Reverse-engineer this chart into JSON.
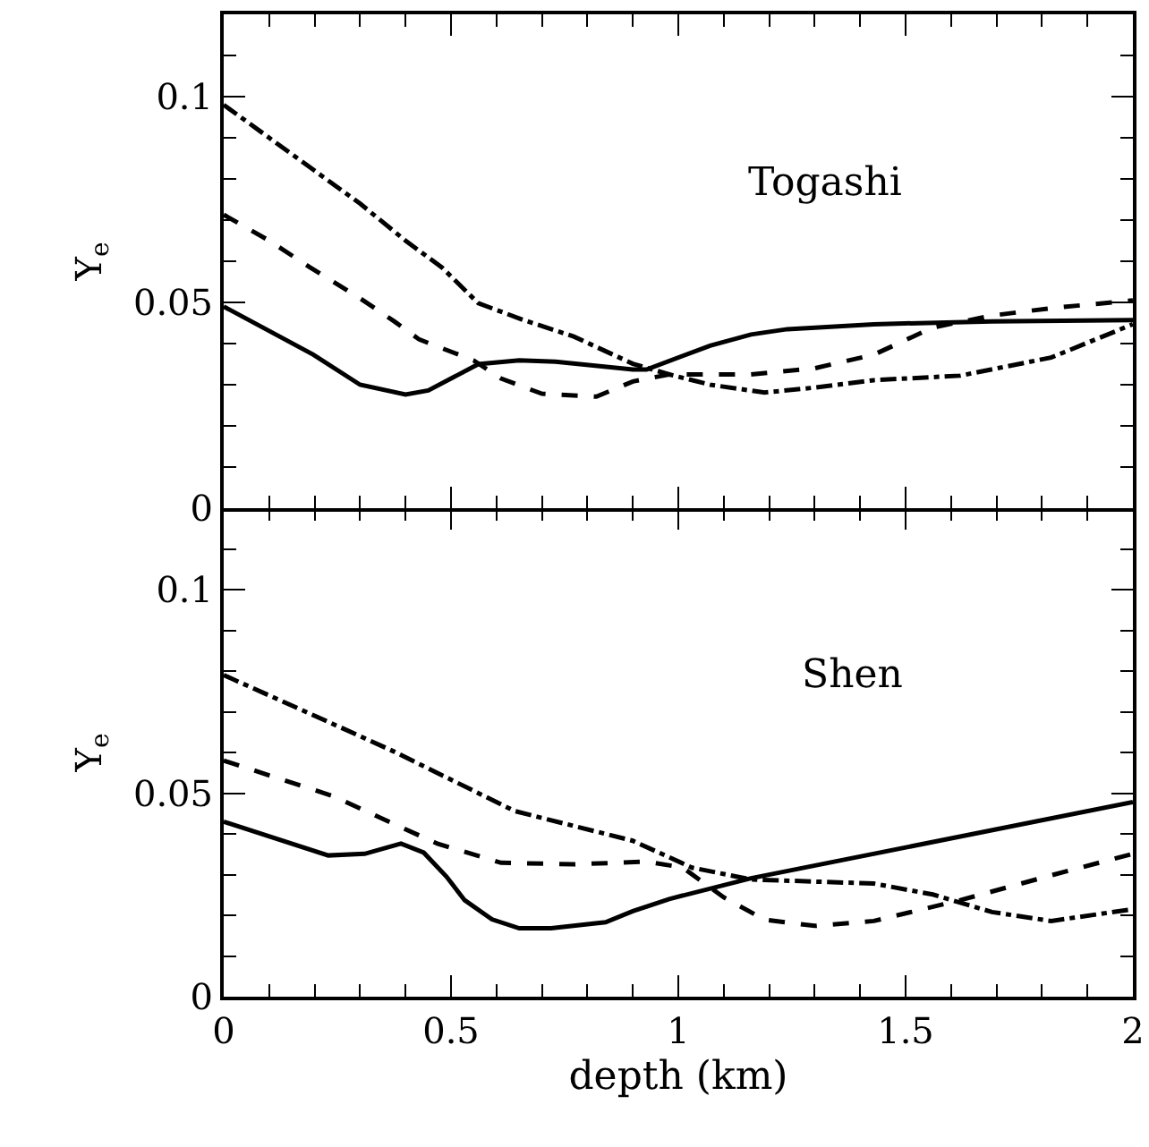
{
  "chart_data": [
    {
      "type": "line",
      "ylabel": "Y$_{e}$",
      "annotations": [
        "Togashi"
      ],
      "tick_labels": "y",
      "xlim": [
        0,
        2
      ],
      "xticks": [
        0,
        0.5,
        1,
        1.5,
        2
      ],
      "ylim": [
        0,
        0.12
      ],
      "yticks": [
        0,
        0.05,
        0.1
      ],
      "series": [
        {
          "color": "#000000",
          "line_style": "solid",
          "x": [
            0,
            0.197,
            0.3,
            0.4,
            0.45,
            0.56,
            0.65,
            0.73,
            0.9,
            0.93,
            1.07,
            1.16,
            1.24,
            1.43,
            1.69,
            2.0
          ],
          "values": [
            0.049,
            0.0373,
            0.03,
            0.0276,
            0.0286,
            0.035,
            0.0359,
            0.0356,
            0.0337,
            0.0337,
            0.0395,
            0.0422,
            0.0435,
            0.0447,
            0.0454,
            0.0457
          ]
        },
        {
          "color": "#000000",
          "line_style": "dashed",
          "x": [
            0,
            0.1,
            0.19,
            0.3,
            0.375,
            0.43,
            0.55,
            0.61,
            0.7,
            0.82,
            0.9,
            0.98,
            1.16,
            1.3,
            1.43,
            1.56,
            1.69,
            1.82,
            2.0
          ],
          "values": [
            0.0713,
            0.065,
            0.0585,
            0.051,
            0.0454,
            0.041,
            0.0359,
            0.0315,
            0.0278,
            0.0271,
            0.0308,
            0.0325,
            0.0325,
            0.034,
            0.0373,
            0.0439,
            0.0468,
            0.0486,
            0.0505
          ]
        },
        {
          "color": "#000000",
          "line_style": "dashdot",
          "x": [
            0,
            0.1,
            0.2,
            0.3,
            0.4,
            0.48,
            0.56,
            0.66,
            0.77,
            0.9,
            0.98,
            1.07,
            1.19,
            1.3,
            1.43,
            1.62,
            1.82,
            2.0
          ],
          "values": [
            0.098,
            0.09,
            0.082,
            0.074,
            0.065,
            0.0585,
            0.0498,
            0.0457,
            0.0417,
            0.0351,
            0.0325,
            0.03,
            0.0281,
            0.0293,
            0.0311,
            0.0322,
            0.0366,
            0.0447
          ]
        }
      ]
    },
    {
      "type": "line",
      "xlabel": "depth (km)",
      "ylabel": "Y$_{e}$",
      "annotations": [
        "Shen"
      ],
      "xlim": [
        0,
        2
      ],
      "xticks": [
        0,
        0.5,
        1,
        1.5,
        2
      ],
      "ylim": [
        0,
        0.12
      ],
      "yticks": [
        0,
        0.05,
        0.1
      ],
      "series": [
        {
          "color": "#000000",
          "line_style": "solid",
          "x": [
            0,
            0.23,
            0.31,
            0.39,
            0.44,
            0.49,
            0.53,
            0.59,
            0.65,
            0.72,
            0.84,
            0.9,
            0.98,
            1.16,
            2.0
          ],
          "values": [
            0.043,
            0.0347,
            0.0351,
            0.0376,
            0.0354,
            0.0295,
            0.0237,
            0.019,
            0.0168,
            0.0168,
            0.0183,
            0.021,
            0.024,
            0.0291,
            0.0478
          ]
        },
        {
          "color": "#000000",
          "line_style": "dashed",
          "x": [
            0,
            0.24,
            0.375,
            0.47,
            0.61,
            0.77,
            0.93,
            1.01,
            1.1,
            1.19,
            1.3,
            1.43,
            1.62,
            1.82,
            2.0
          ],
          "values": [
            0.058,
            0.0493,
            0.0424,
            0.0376,
            0.0329,
            0.0325,
            0.0332,
            0.0317,
            0.0244,
            0.0189,
            0.0174,
            0.0186,
            0.0237,
            0.0298,
            0.0351
          ]
        },
        {
          "color": "#000000",
          "line_style": "dashdot",
          "x": [
            0,
            0.1,
            0.2,
            0.3,
            0.375,
            0.64,
            0.9,
            1.03,
            1.16,
            1.43,
            1.56,
            1.69,
            1.82,
            2.0
          ],
          "values": [
            0.079,
            0.074,
            0.069,
            0.064,
            0.0602,
            0.0456,
            0.0383,
            0.0317,
            0.0288,
            0.0278,
            0.0251,
            0.0208,
            0.0186,
            0.0215
          ]
        }
      ]
    }
  ]
}
